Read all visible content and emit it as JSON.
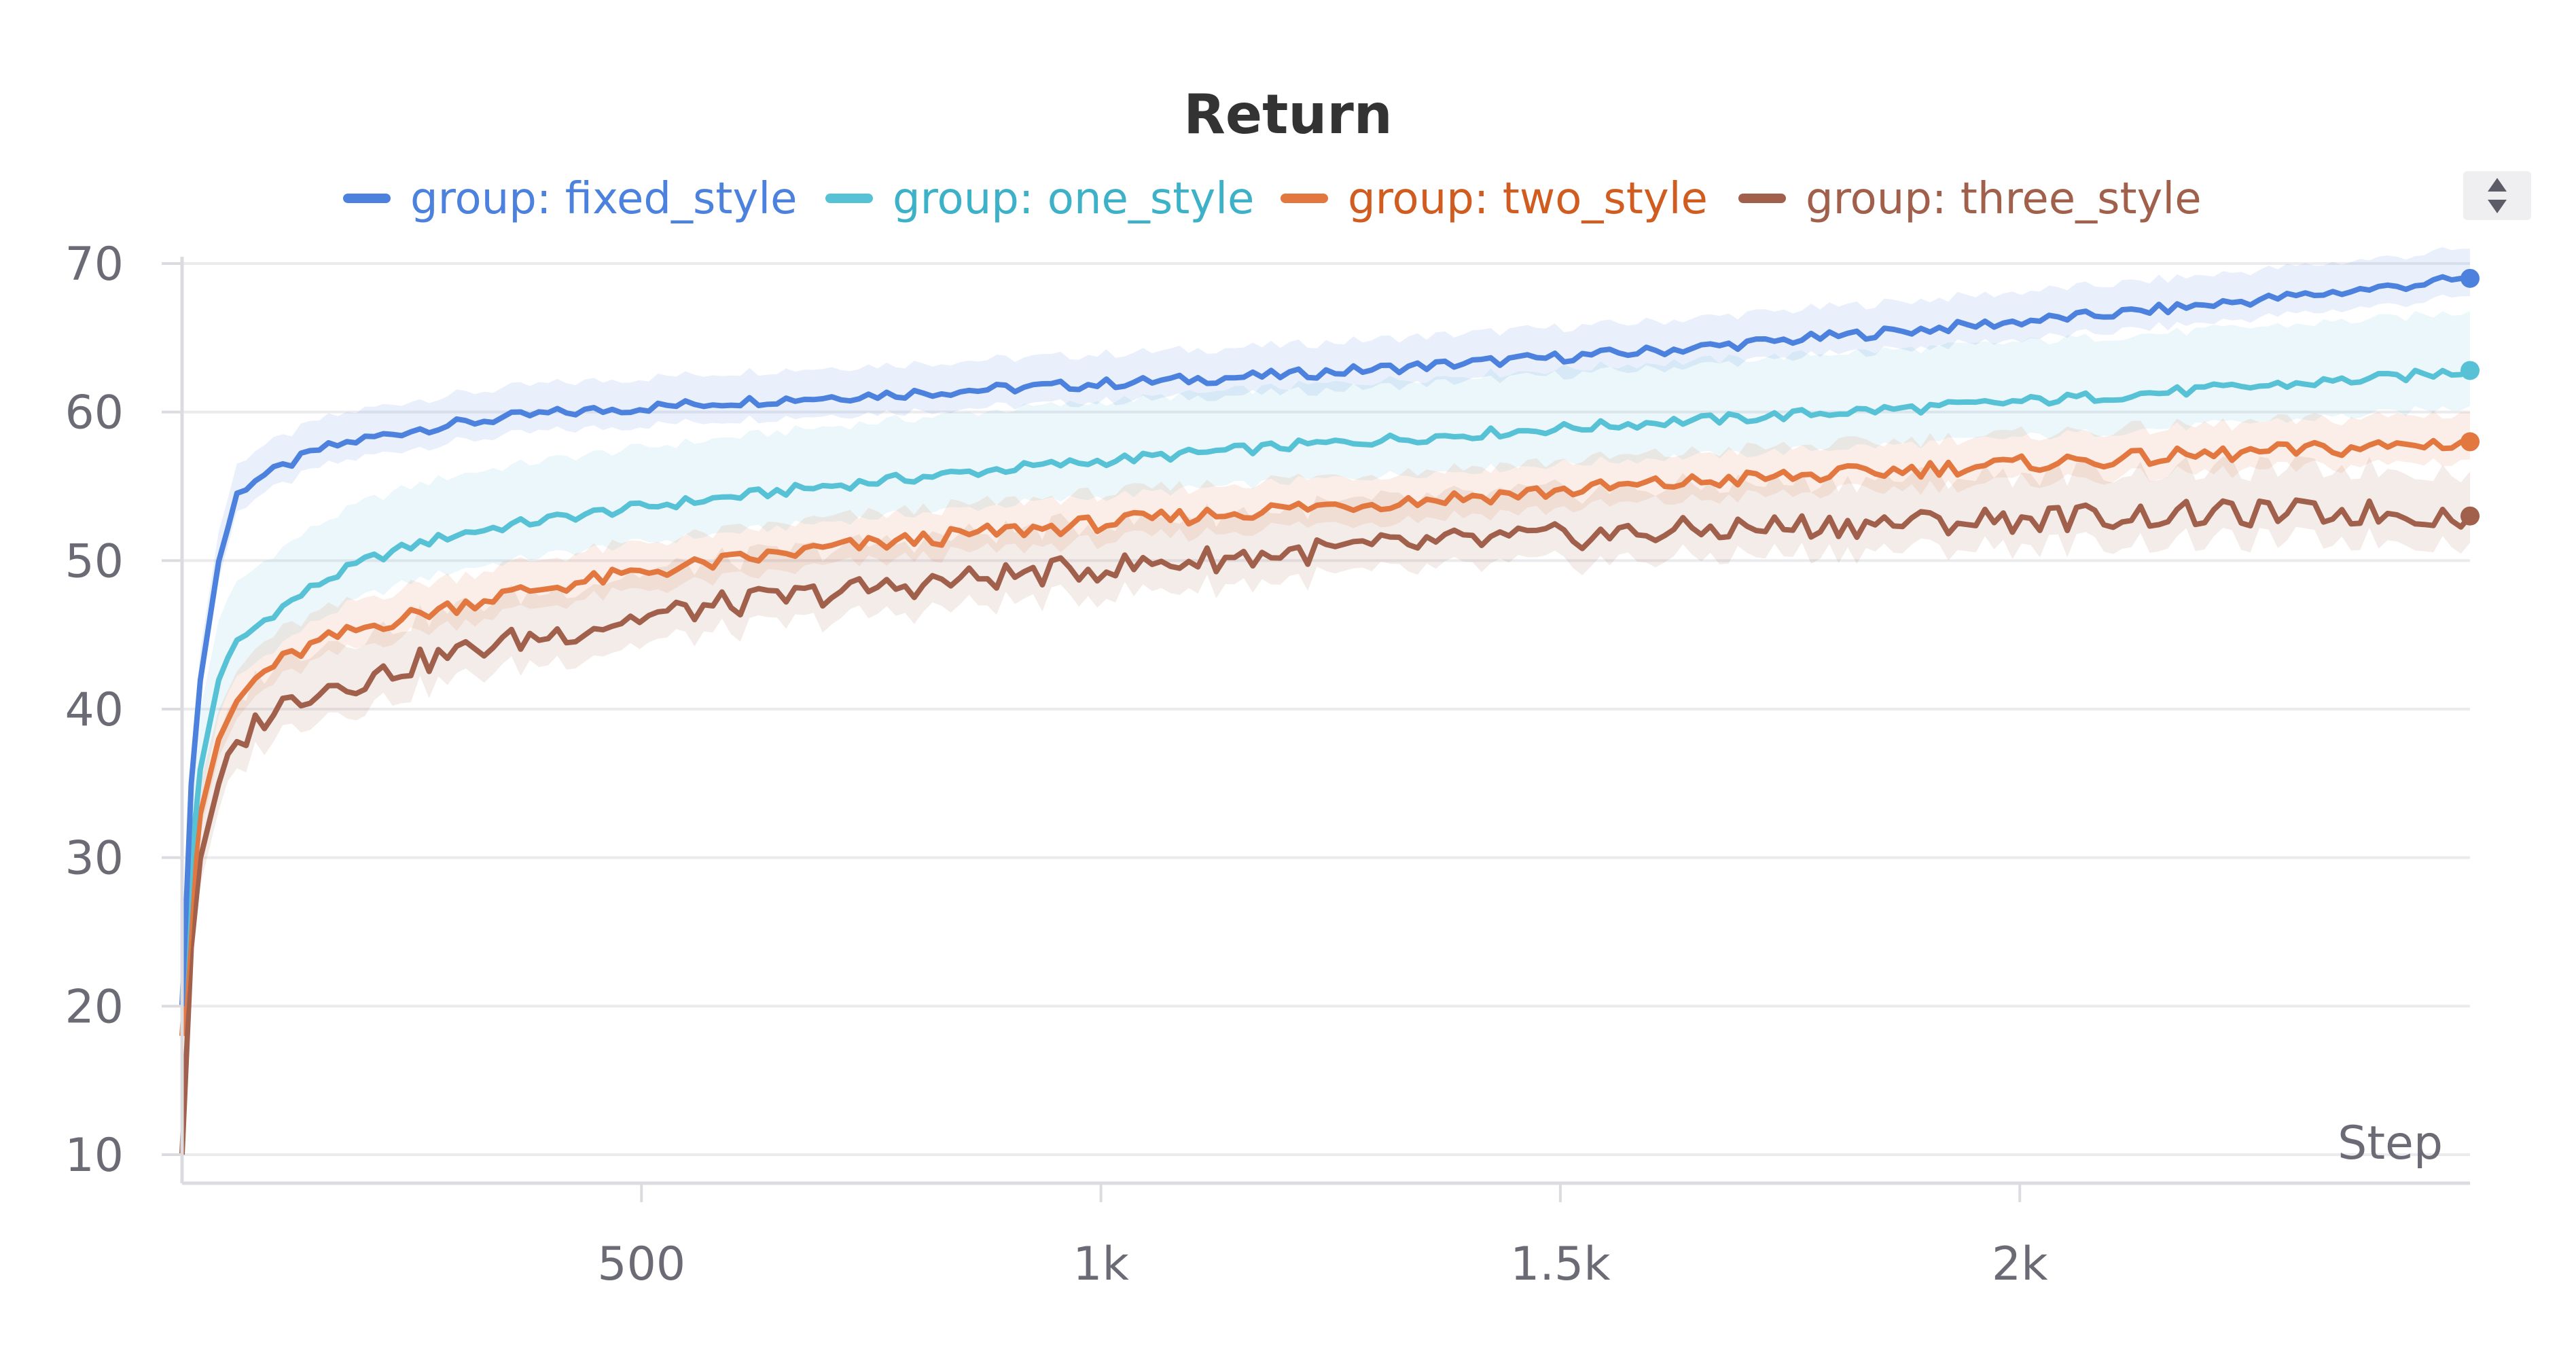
{
  "chart_data": {
    "type": "line",
    "title": "Return",
    "xlabel": "Step",
    "ylabel": "",
    "xlim": [
      0,
      2490
    ],
    "ylim": [
      10,
      70
    ],
    "x_ticks": [
      {
        "value": 500,
        "label": "500"
      },
      {
        "value": 1000,
        "label": "1k"
      },
      {
        "value": 1500,
        "label": "1.5k"
      },
      {
        "value": 2000,
        "label": "2k"
      }
    ],
    "y_ticks": [
      10,
      20,
      30,
      40,
      50,
      60,
      70
    ],
    "grid": true,
    "legend_position": "top",
    "x": [
      0,
      10,
      20,
      40,
      60,
      80,
      100,
      150,
      200,
      250,
      300,
      350,
      400,
      500,
      600,
      700,
      800,
      900,
      1000,
      1100,
      1200,
      1300,
      1400,
      1500,
      1600,
      1700,
      1800,
      1900,
      2000,
      2100,
      2200,
      2300,
      2400,
      2490
    ],
    "series": [
      {
        "name": "group: fixed_style",
        "color": "#4c82de",
        "band": 2,
        "values": [
          20,
          35,
          42,
          50,
          54.5,
          55.5,
          56,
          57.5,
          58.2,
          58.8,
          59.2,
          59.6,
          59.9,
          60.3,
          60.7,
          61.0,
          61.3,
          61.6,
          61.9,
          62.2,
          62.5,
          62.9,
          63.3,
          63.7,
          64.1,
          64.6,
          65.1,
          65.6,
          66.1,
          66.6,
          67.2,
          67.8,
          68.4,
          69
        ]
      },
      {
        "name": "group: one_style",
        "color": "#57c1d6",
        "band": 4,
        "values": [
          20,
          30,
          36,
          42,
          44.5,
          45.5,
          46.5,
          48.5,
          50,
          51,
          51.8,
          52.3,
          52.8,
          53.6,
          54.3,
          55,
          55.6,
          56.2,
          56.7,
          57.2,
          57.7,
          58.1,
          58.5,
          58.9,
          59.3,
          59.6,
          60,
          60.3,
          60.7,
          61.1,
          61.5,
          61.9,
          62.3,
          62.8
        ]
      },
      {
        "name": "group: two_style",
        "color": "#e27740",
        "band": 2,
        "values": [
          18,
          27,
          33,
          38,
          40.5,
          42,
          43,
          44.5,
          45.5,
          46.3,
          47,
          47.7,
          48.2,
          49.2,
          50,
          50.8,
          51.4,
          52,
          52.5,
          53,
          53.5,
          53.9,
          54.3,
          54.7,
          55.1,
          55.5,
          55.8,
          56.2,
          56.5,
          56.8,
          57.1,
          57.4,
          57.7,
          58
        ]
      },
      {
        "name": "group: three_style",
        "color": "#a1604b",
        "band": 3,
        "values": [
          10,
          24,
          30,
          35,
          37.5,
          39,
          40,
          41.5,
          42,
          43,
          43.8,
          44.5,
          45,
          46.2,
          47.1,
          47.8,
          48.4,
          49,
          49.5,
          50,
          50.5,
          50.9,
          51.3,
          51.6,
          51.9,
          52.2,
          52.4,
          52.6,
          52.8,
          53,
          53.1,
          53.2,
          53.2,
          53
        ]
      }
    ]
  }
}
